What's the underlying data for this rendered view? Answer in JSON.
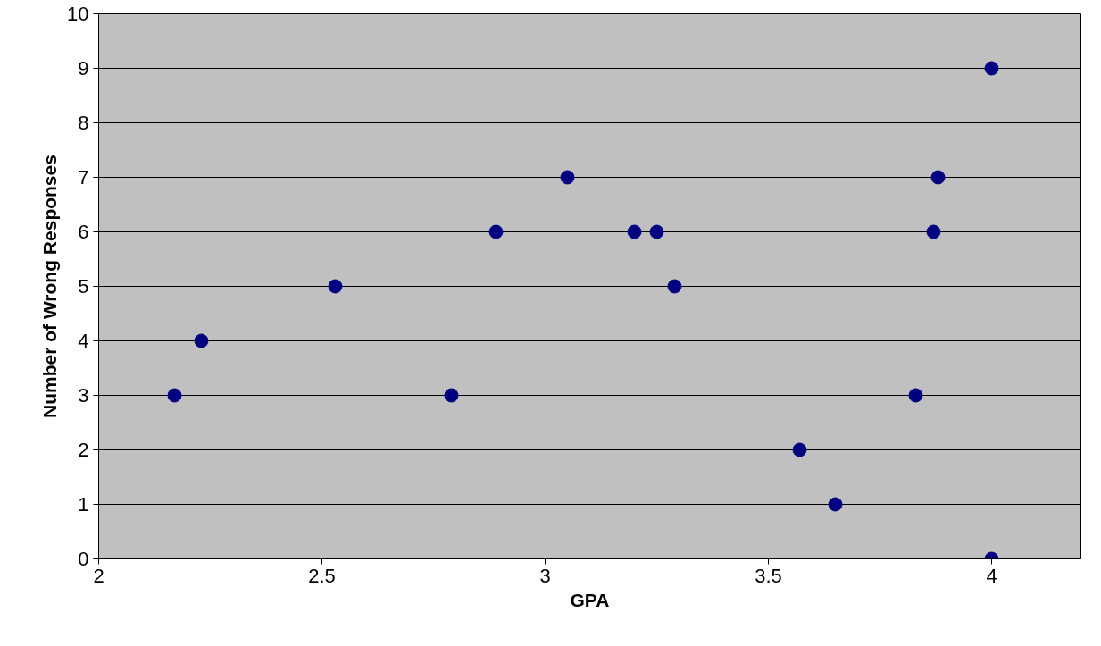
{
  "chart_data": {
    "type": "scatter",
    "xlabel": "GPA",
    "ylabel": "Number of Wrong Responses",
    "x": [
      2.17,
      2.23,
      2.53,
      2.79,
      2.89,
      3.05,
      3.2,
      3.25,
      3.29,
      3.57,
      3.65,
      3.83,
      3.87,
      3.88,
      4.0,
      4.0
    ],
    "series": [
      {
        "color": "#000080",
        "values": [
          3,
          4,
          5,
          3,
          6,
          7,
          6,
          6,
          5,
          2,
          1,
          3,
          6,
          7,
          9,
          0
        ]
      }
    ],
    "xlim": [
      2,
      4.2
    ],
    "xticks": [
      2,
      2.5,
      3,
      3.5,
      4
    ],
    "ylim": [
      0,
      10
    ],
    "yticks": [
      0,
      1,
      2,
      3,
      4,
      5,
      6,
      7,
      8,
      9,
      10
    ],
    "grid": "y",
    "marker": "circle"
  }
}
